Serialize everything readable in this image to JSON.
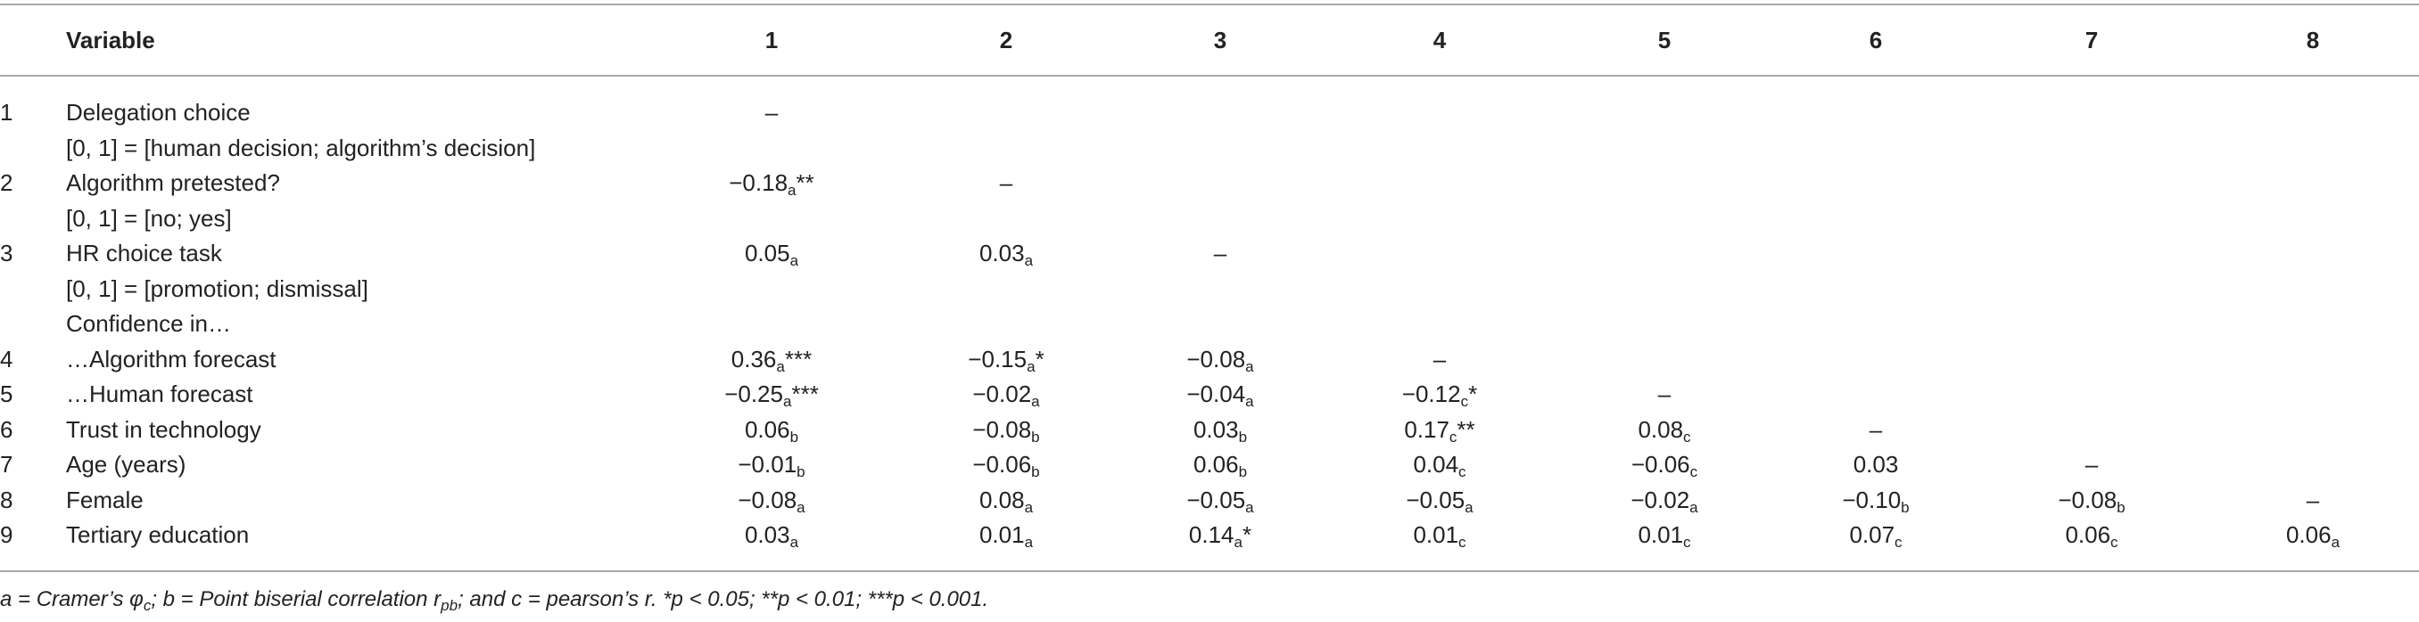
{
  "table": {
    "header": [
      "Variable",
      "1",
      "2",
      "3",
      "4",
      "5",
      "6",
      "7",
      "8"
    ],
    "rows": [
      {
        "number": "1",
        "label": "Delegation choice",
        "sublabel": "[0, 1] = [human decision; algorithm’s decision]",
        "cells": [
          {
            "value": "–"
          }
        ]
      },
      {
        "number": "2",
        "label": "Algorithm pretested?",
        "sublabel": "[0, 1] = [no; yes]",
        "cells": [
          {
            "value": "−0.18",
            "sub": "a",
            "sig": "**"
          },
          {
            "value": "–"
          }
        ]
      },
      {
        "number": "3",
        "label": "HR choice task",
        "sublabel": "[0, 1] = [promotion; dismissal]",
        "cells": [
          {
            "value": "0.05",
            "sub": "a"
          },
          {
            "value": "0.03",
            "sub": "a"
          },
          {
            "value": "–"
          }
        ]
      },
      {
        "label": "Confidence in…",
        "cells": []
      },
      {
        "number": "4",
        "label": "…Algorithm forecast",
        "cells": [
          {
            "value": "0.36",
            "sub": "a",
            "sig": "***"
          },
          {
            "value": "−0.15",
            "sub": "a",
            "sig": "*"
          },
          {
            "value": "−0.08",
            "sub": "a"
          },
          {
            "value": "–"
          }
        ]
      },
      {
        "number": "5",
        "label": "…Human forecast",
        "cells": [
          {
            "value": "−0.25",
            "sub": "a",
            "sig": "***"
          },
          {
            "value": "−0.02",
            "sub": "a"
          },
          {
            "value": "−0.04",
            "sub": "a"
          },
          {
            "value": "−0.12",
            "sub": "c",
            "sig": "*"
          },
          {
            "value": "–"
          }
        ]
      },
      {
        "number": "6",
        "label": "Trust in technology",
        "cells": [
          {
            "value": "0.06",
            "sub": "b"
          },
          {
            "value": "−0.08",
            "sub": "b"
          },
          {
            "value": "0.03",
            "sub": "b"
          },
          {
            "value": "0.17",
            "sub": "c",
            "sig": "**"
          },
          {
            "value": "0.08",
            "sub": "c"
          },
          {
            "value": "–"
          }
        ]
      },
      {
        "number": "7",
        "label": "Age (years)",
        "cells": [
          {
            "value": "−0.01",
            "sub": "b"
          },
          {
            "value": "−0.06",
            "sub": "b"
          },
          {
            "value": "0.06",
            "sub": "b"
          },
          {
            "value": "0.04",
            "sub": "c"
          },
          {
            "value": "−0.06",
            "sub": "c"
          },
          {
            "value": "0.03"
          },
          {
            "value": "–"
          }
        ]
      },
      {
        "number": "8",
        "label": "Female",
        "cells": [
          {
            "value": "−0.08",
            "sub": "a"
          },
          {
            "value": "0.08",
            "sub": "a"
          },
          {
            "value": "−0.05",
            "sub": "a"
          },
          {
            "value": "−0.05",
            "sub": "a"
          },
          {
            "value": "−0.02",
            "sub": "a"
          },
          {
            "value": "−0.10",
            "sub": "b"
          },
          {
            "value": "−0.08",
            "sub": "b"
          },
          {
            "value": "–"
          }
        ]
      },
      {
        "number": "9",
        "label": "Tertiary education",
        "cells": [
          {
            "value": "0.03",
            "sub": "a"
          },
          {
            "value": "0.01",
            "sub": "a"
          },
          {
            "value": "0.14",
            "sub": "a",
            "sig": "*"
          },
          {
            "value": "0.01",
            "sub": "c"
          },
          {
            "value": "0.01",
            "sub": "c"
          },
          {
            "value": "0.07",
            "sub": "c"
          },
          {
            "value": "0.06",
            "sub": "c"
          },
          {
            "value": "0.06",
            "sub": "a"
          }
        ]
      }
    ],
    "footnote": [
      "a = Cramer’s φ",
      "c",
      "; b = Point biserial correlation r",
      "pb",
      "; and c = pearson’s r.  *p < 0.05;  **p < 0.01;  ***p < 0.001."
    ]
  }
}
